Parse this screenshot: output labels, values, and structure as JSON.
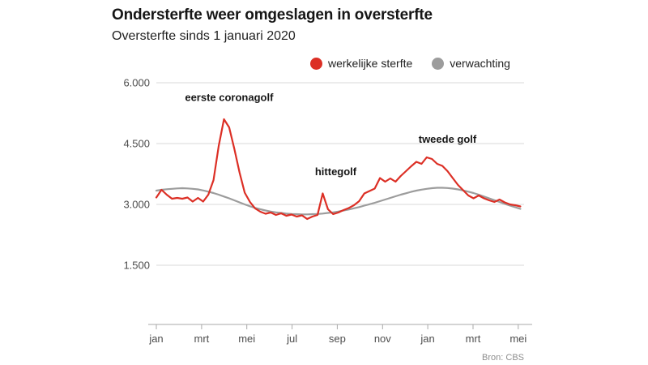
{
  "header": {
    "title": "Ondersterfte weer omgeslagen in oversterfte",
    "subtitle": "Oversterfte sinds 1 januari 2020"
  },
  "legend": [
    {
      "label": "werkelijke sterfte",
      "color": "#dc2f25"
    },
    {
      "label": "verwachting",
      "color": "#9c9c9c"
    }
  ],
  "source": "Bron: CBS",
  "chart_data": {
    "type": "line",
    "title": "Ondersterfte weer omgeslagen in oversterfte",
    "subtitle": "Oversterfte sinds 1 januari 2020",
    "x_unit": "week (jan 2020 - mei 2021)",
    "x_tick_labels": [
      "jan",
      "mrt",
      "mei",
      "jul",
      "sep",
      "nov",
      "jan",
      "mrt",
      "mei"
    ],
    "x_tick_interval_weeks": 8.7,
    "y_ticks": [
      6000,
      4500,
      3000,
      1500
    ],
    "y_tick_labels": [
      "6.000",
      "4.500",
      "3.000",
      "1.500"
    ],
    "ylim": [
      0,
      6000
    ],
    "grid": "horizontal",
    "legend_position": "top",
    "series": [
      {
        "name": "verwachting",
        "color": "#9c9c9c",
        "values": [
          3340,
          3360,
          3375,
          3385,
          3395,
          3400,
          3395,
          3385,
          3370,
          3345,
          3315,
          3280,
          3240,
          3195,
          3150,
          3100,
          3050,
          3000,
          2955,
          2915,
          2880,
          2850,
          2825,
          2805,
          2790,
          2775,
          2765,
          2760,
          2755,
          2755,
          2760,
          2765,
          2775,
          2790,
          2805,
          2825,
          2850,
          2875,
          2905,
          2935,
          2970,
          3005,
          3040,
          3080,
          3120,
          3160,
          3200,
          3240,
          3275,
          3310,
          3340,
          3365,
          3385,
          3400,
          3410,
          3410,
          3405,
          3390,
          3370,
          3345,
          3315,
          3280,
          3240,
          3195,
          3150,
          3105,
          3060,
          3015,
          2970,
          2930,
          2890
        ]
      },
      {
        "name": "werkelijke sterfte",
        "color": "#dc2f25",
        "values": [
          3170,
          3360,
          3240,
          3140,
          3160,
          3140,
          3170,
          3070,
          3160,
          3070,
          3240,
          3600,
          4440,
          5100,
          4900,
          4370,
          3790,
          3290,
          3060,
          2900,
          2820,
          2770,
          2800,
          2740,
          2780,
          2720,
          2750,
          2700,
          2730,
          2640,
          2700,
          2740,
          3270,
          2880,
          2760,
          2800,
          2860,
          2910,
          2980,
          3080,
          3270,
          3330,
          3390,
          3650,
          3560,
          3640,
          3560,
          3700,
          3820,
          3940,
          4050,
          4000,
          4160,
          4120,
          4000,
          3950,
          3820,
          3650,
          3480,
          3350,
          3220,
          3150,
          3220,
          3150,
          3100,
          3060,
          3120,
          3050,
          3000,
          2980,
          2950
        ]
      }
    ],
    "annotations": [
      {
        "text": "eerste coronagolf",
        "week": 14,
        "value": 5550
      },
      {
        "text": "hittegolf",
        "week": 34.5,
        "value": 3720
      },
      {
        "text": "tweede golf",
        "week": 56,
        "value": 4520
      }
    ]
  }
}
